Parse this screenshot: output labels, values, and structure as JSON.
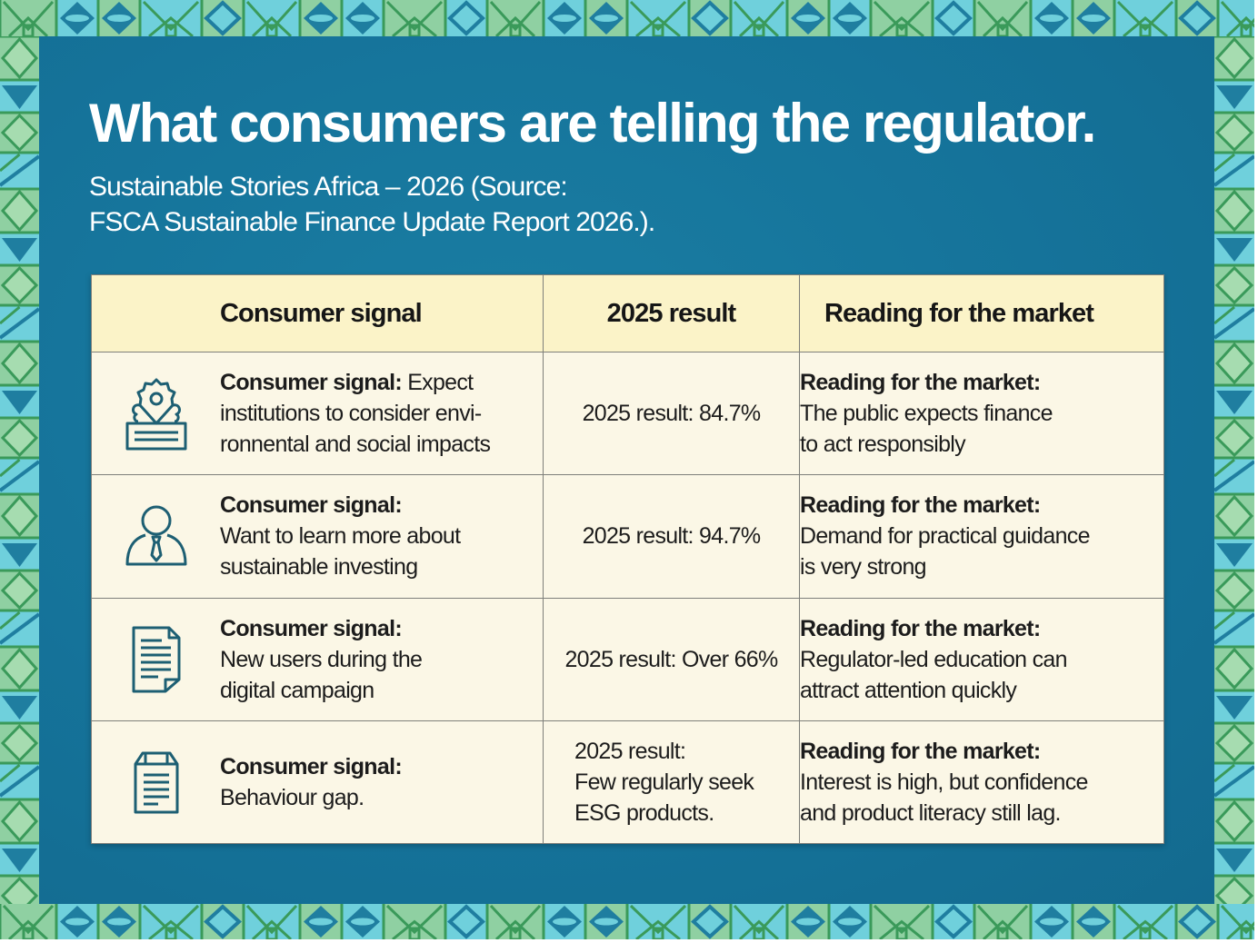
{
  "header": {
    "title": "What consumers are telling the regulator.",
    "subtitle_line1": "Sustainable Stories Africa – 2026 (Source:",
    "subtitle_line2": "FSCA Sustainable Finance Update Report 2026.)."
  },
  "colors": {
    "panel": "#15739a",
    "table_header": "#fbf3c8",
    "table_body": "#fbf7e6",
    "icon_stroke": "#1d5f73",
    "border_green": "#8fd0a2",
    "border_teal": "#6fd0dc"
  },
  "table": {
    "columns": [
      "Consumer signal",
      "2025 result",
      "Reading for the market"
    ],
    "rows": [
      {
        "icon": "institution-badge-icon",
        "signal_label": "Consumer signal:",
        "signal_text_inline": " Expect",
        "signal_lines": [
          "institutions to consider envi-",
          "ronnental and social impacts"
        ],
        "result_lines": [
          "2025 result: 84.7%"
        ],
        "reading_label": "Reading for the market:",
        "reading_lines": [
          "The public expects finance",
          "to act responsibly"
        ]
      },
      {
        "icon": "person-tie-icon",
        "signal_label": "Consumer signal:",
        "signal_lines": [
          "Want to learn more about",
          "sustainable investing"
        ],
        "result_lines": [
          "2025 result: 94.7%"
        ],
        "reading_label": "Reading for the market:",
        "reading_lines": [
          "Demand for practical guidance",
          "is very strong"
        ]
      },
      {
        "icon": "document-icon",
        "signal_label": "Consumer signal:",
        "signal_lines": [
          "New users during the",
          "digital campaign"
        ],
        "result_lines": [
          "2025 result: Over 66%"
        ],
        "reading_label": "Reading for the market:",
        "reading_lines": [
          "Regulator-led education can",
          "attract attention quickly"
        ]
      },
      {
        "icon": "clipboard-icon",
        "signal_label": "Consumer signal:",
        "signal_lines": [
          "Behaviour gap."
        ],
        "result_lines": [
          "2025 result:",
          "Few regularly seek",
          "ESG products."
        ],
        "reading_label": "Reading for the market:",
        "reading_lines": [
          "Interest is high, but confidence",
          "and product literacy still lag."
        ]
      }
    ]
  }
}
